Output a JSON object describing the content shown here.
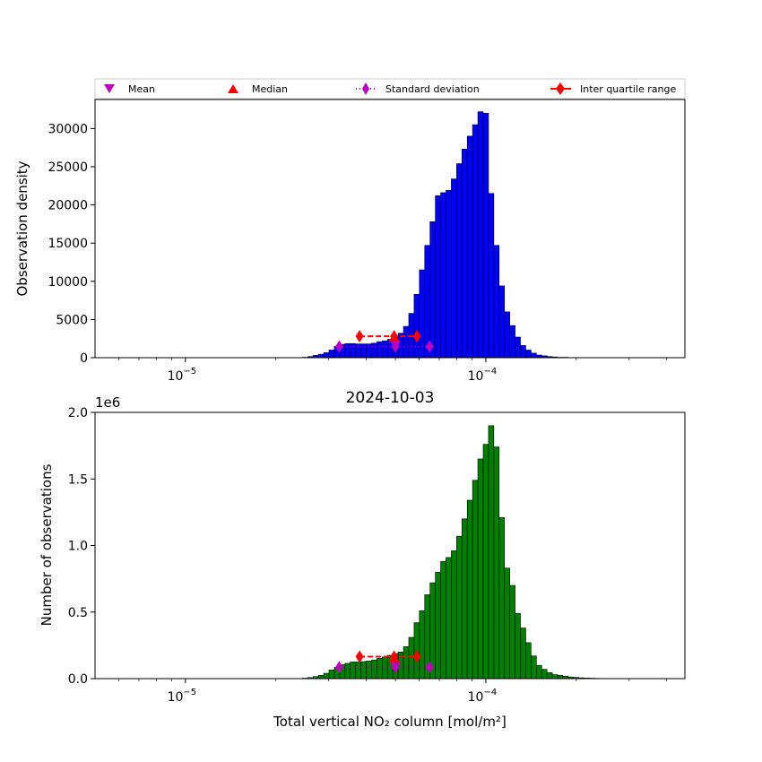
{
  "legend": {
    "mean": "Mean",
    "median": "Median",
    "std": "Standard deviation",
    "iqr": "Inter quartile range"
  },
  "colors": {
    "top_bars": "#0000ff",
    "bottom_bars": "#008000",
    "mean": "#bf00bf",
    "median": "#ff0000",
    "std": "#bf00bf",
    "iqr": "#ff0000"
  },
  "chart_data": [
    {
      "type": "bar",
      "title": "",
      "ylabel": "Observation density",
      "xlabel": "",
      "xscale": "log",
      "xlim": [
        5e-06,
        0.00046
      ],
      "ylim": [
        0,
        33800
      ],
      "yticks": [
        0,
        5000,
        10000,
        15000,
        20000,
        25000,
        30000
      ],
      "ytick_labels": [
        "0",
        "5000",
        "10000",
        "15000",
        "20000",
        "25000",
        "30000"
      ],
      "xticks": [
        1e-05,
        0.0001
      ],
      "xtick_labels": [
        {
          "base": "10",
          "exp": "−5"
        },
        {
          "base": "10",
          "exp": "−4"
        }
      ],
      "bin_start": 1e-05,
      "bin_ratio": 1.0416,
      "bin_first_index": -18,
      "values": [
        0,
        0,
        0,
        0,
        0,
        0,
        0,
        0,
        0,
        0,
        0,
        0,
        0,
        0,
        0,
        0,
        0,
        0,
        0,
        0,
        0,
        0,
        0,
        0,
        0,
        0,
        0,
        0,
        0,
        0,
        0,
        0,
        0,
        0,
        0,
        0,
        0,
        0,
        0,
        0,
        50,
        150,
        300,
        450,
        650,
        1000,
        1500,
        1750,
        1850,
        1850,
        1800,
        1800,
        1800,
        1900,
        2100,
        2200,
        2400,
        2700,
        3200,
        4100,
        5800,
        8300,
        11500,
        14700,
        17800,
        21200,
        21600,
        21900,
        23400,
        25400,
        27300,
        29000,
        30500,
        32200,
        32000,
        21500,
        14700,
        9400,
        6000,
        4200,
        2700,
        1600,
        1000,
        600,
        350,
        250,
        150,
        100,
        50,
        50,
        0,
        0,
        0,
        0,
        0,
        0,
        0,
        0,
        0,
        0,
        0,
        0,
        0,
        0,
        0,
        0,
        0,
        0,
        0,
        0,
        0
      ],
      "markers": {
        "mean": {
          "x": 5e-05,
          "y": 1700
        },
        "median": {
          "x": 4.95e-05,
          "y": 2700
        },
        "iqr": {
          "x": [
            3.8e-05,
            4.95e-05,
            5.9e-05
          ],
          "y": 2800
        },
        "std": {
          "x": [
            3.25e-05,
            5e-05,
            6.5e-05
          ],
          "y": 1450
        }
      }
    },
    {
      "type": "bar",
      "title": "2024-10-03",
      "ylabel": "Number of observations",
      "xlabel": "Total vertical NO₂ column [mol/m²]",
      "xscale": "log",
      "xlim": [
        5e-06,
        0.00046
      ],
      "ylim": [
        0,
        2000000
      ],
      "offset_label": "1e6",
      "yticks": [
        0,
        500000,
        1000000,
        1500000,
        2000000
      ],
      "ytick_labels": [
        "0.0",
        "0.5",
        "1.0",
        "1.5",
        "2.0"
      ],
      "xticks": [
        1e-05,
        0.0001
      ],
      "xtick_labels": [
        {
          "base": "10",
          "exp": "−5"
        },
        {
          "base": "10",
          "exp": "−4"
        }
      ],
      "bin_start": 1e-05,
      "bin_ratio": 1.0416,
      "bin_first_index": -18,
      "values": [
        0,
        0,
        0,
        0,
        0,
        0,
        0,
        0,
        0,
        0,
        0,
        0,
        0,
        0,
        0,
        0,
        0,
        0,
        0,
        0,
        0,
        0,
        0,
        0,
        0,
        0,
        0,
        0,
        0,
        0,
        0,
        0,
        0,
        0,
        0,
        0,
        0,
        0,
        0,
        0,
        3000,
        8000,
        15000,
        25000,
        40000,
        65000,
        85000,
        105000,
        115000,
        125000,
        125000,
        128000,
        132000,
        140000,
        152000,
        162000,
        175000,
        188000,
        200000,
        240000,
        310000,
        420000,
        510000,
        630000,
        720000,
        800000,
        880000,
        910000,
        960000,
        1070000,
        1200000,
        1340000,
        1490000,
        1650000,
        1760000,
        1900000,
        1740000,
        1210000,
        830000,
        700000,
        490000,
        380000,
        270000,
        170000,
        100000,
        70000,
        45000,
        30000,
        25000,
        18000,
        12000,
        9000,
        6000,
        4000,
        3000,
        2000,
        1000,
        500,
        0,
        0,
        0,
        0,
        0,
        0,
        0,
        0,
        0,
        0,
        0,
        0,
        0
      ],
      "markers": {
        "mean": {
          "x": 5e-05,
          "y": 95000
        },
        "median": {
          "x": 4.95e-05,
          "y": 155000
        },
        "iqr": {
          "x": [
            3.8e-05,
            4.95e-05,
            5.9e-05
          ],
          "y": 165000
        },
        "std": {
          "x": [
            3.25e-05,
            5e-05,
            6.5e-05
          ],
          "y": 85000
        }
      }
    }
  ]
}
